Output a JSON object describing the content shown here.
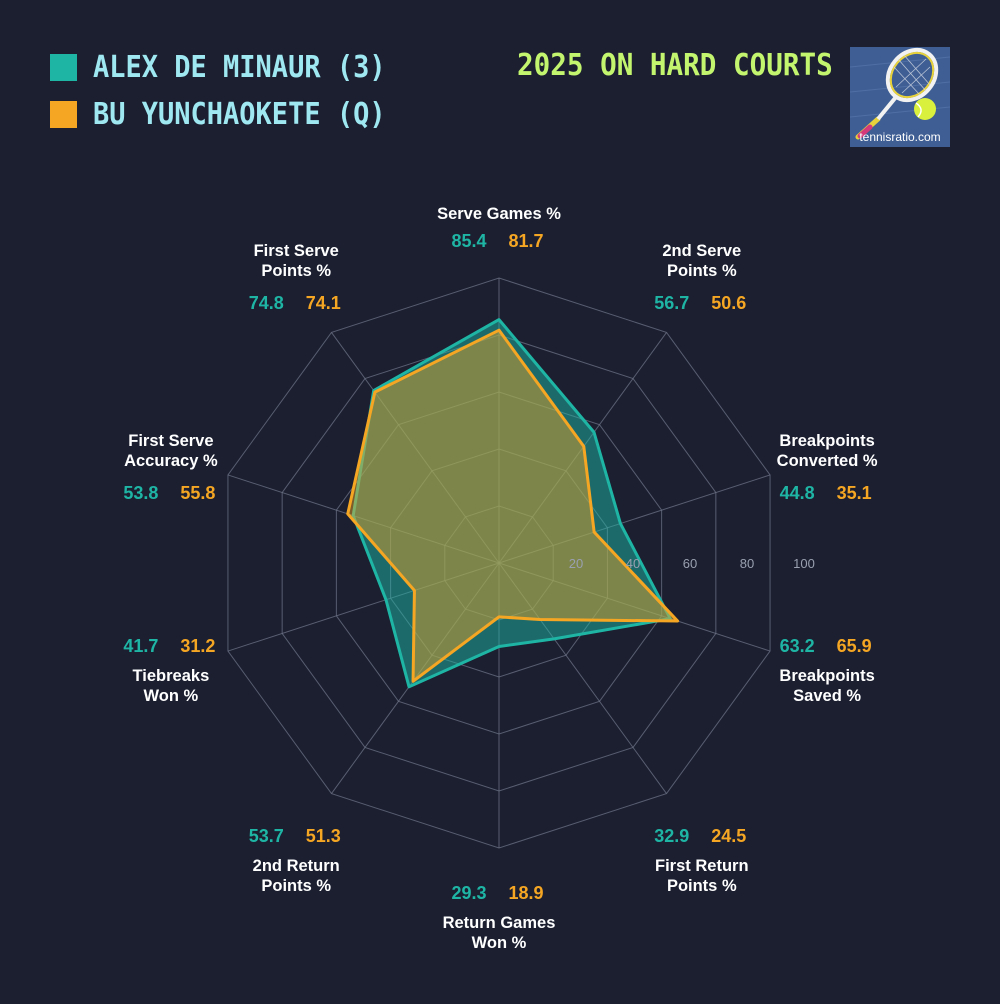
{
  "legend": [
    {
      "label": "ALEX DE MINAUR (3)",
      "color": "#1fb5a5"
    },
    {
      "label": "BU YUNCHAOKETE (Q)",
      "color": "#f5a623"
    }
  ],
  "subtitle": "2025 ON HARD COURTS",
  "logo": {
    "text": "tennisratio.com",
    "icon": "tennis-racket-ball-icon"
  },
  "colors": {
    "background": "#1b1f30",
    "grid": "#6e7386",
    "label": "#ffffff",
    "tick": "#9aa0b0",
    "player1_value": "#1fb5a5",
    "player2_value": "#f5a623"
  },
  "chart_data": {
    "type": "radar",
    "rmax": 100,
    "ticks": [
      "20",
      "40",
      "60",
      "80",
      "100"
    ],
    "axes": [
      {
        "label_lines": [
          "Serve Games %"
        ]
      },
      {
        "label_lines": [
          "2nd Serve",
          "Points %"
        ]
      },
      {
        "label_lines": [
          "Breakpoints",
          "Converted %"
        ]
      },
      {
        "label_lines": [
          "Breakpoints",
          "Saved %"
        ]
      },
      {
        "label_lines": [
          "First Return",
          "Points %"
        ]
      },
      {
        "label_lines": [
          "Return Games",
          "Won %"
        ]
      },
      {
        "label_lines": [
          "2nd Return",
          "Points %"
        ]
      },
      {
        "label_lines": [
          "Tiebreaks",
          "Won %"
        ]
      },
      {
        "label_lines": [
          "First Serve",
          "Accuracy %"
        ]
      },
      {
        "label_lines": [
          "First Serve",
          "Points %"
        ]
      }
    ],
    "series": [
      {
        "name": "ALEX DE MINAUR (3)",
        "color": "#1fb5a5",
        "values": [
          85.4,
          56.7,
          44.8,
          63.2,
          32.9,
          29.3,
          53.7,
          41.7,
          53.8,
          74.8
        ],
        "labels": [
          "85.4",
          "56.7",
          "44.8",
          "63.2",
          "32.9",
          "29.3",
          "53.7",
          "41.7",
          "53.8",
          "74.8"
        ]
      },
      {
        "name": "BU YUNCHAOKETE (Q)",
        "color": "#f5a623",
        "values": [
          81.7,
          50.6,
          35.1,
          65.9,
          24.5,
          18.9,
          51.3,
          31.2,
          55.8,
          74.1
        ],
        "labels": [
          "81.7",
          "50.6",
          "35.1",
          "65.9",
          "24.5",
          "18.9",
          "51.3",
          "31.2",
          "55.8",
          "74.1"
        ]
      }
    ]
  }
}
